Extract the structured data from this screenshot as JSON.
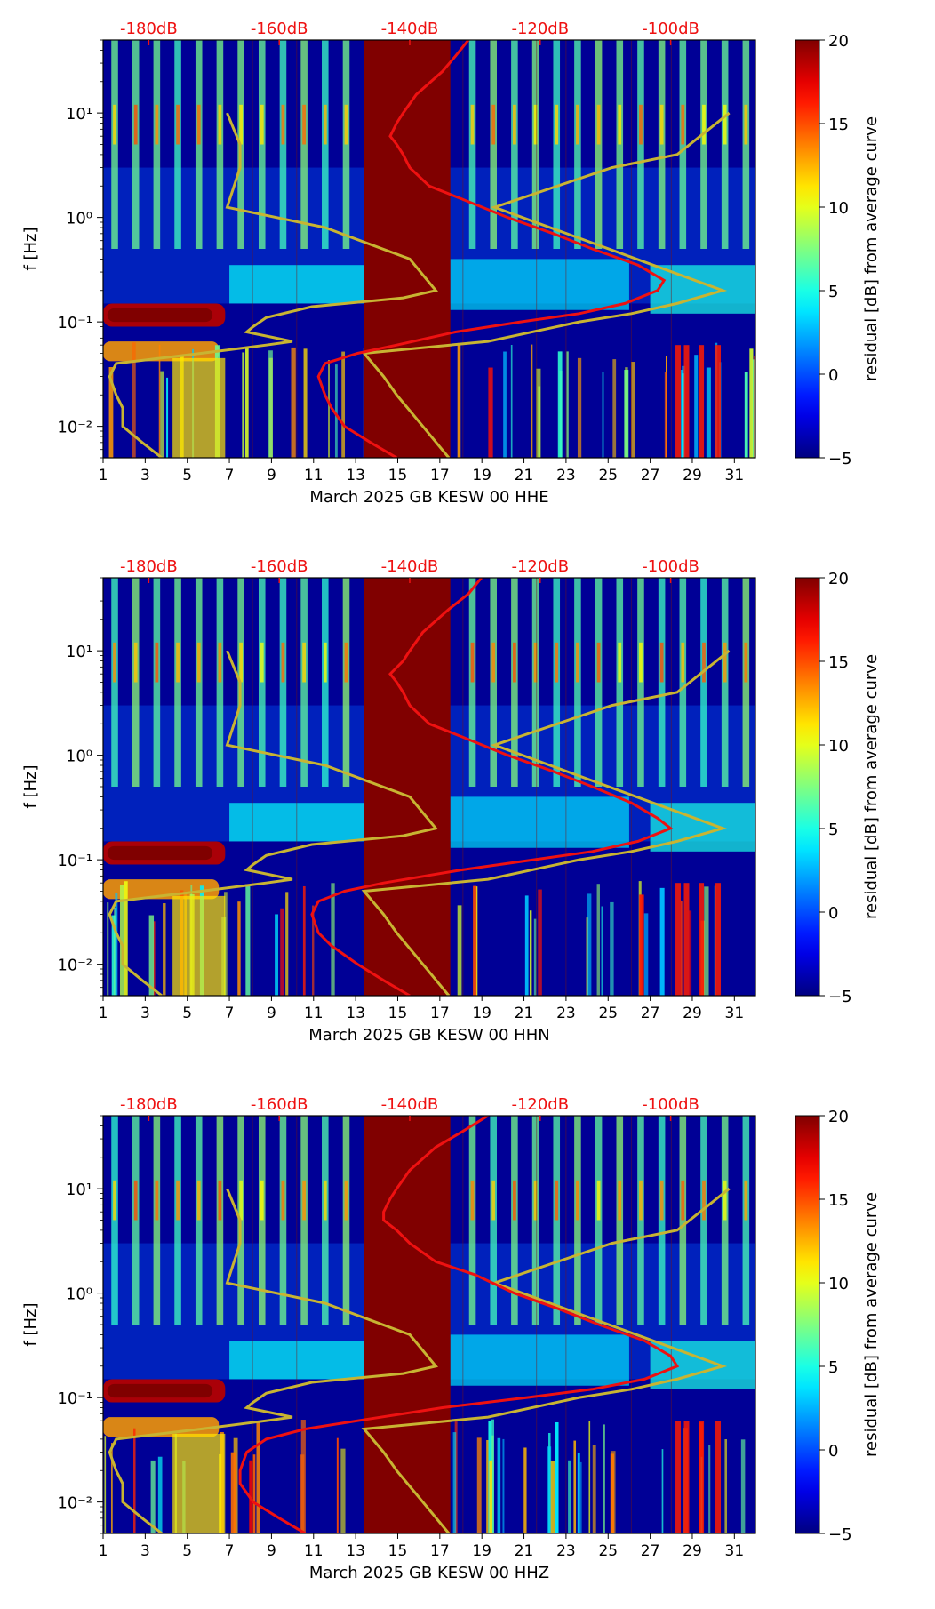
{
  "chart_data": [
    {
      "type": "heatmap",
      "xlabel": "March 2025 GB KESW 00 HHE",
      "ylabel": "f [Hz]",
      "x_ticks": [
        "1",
        "3",
        "5",
        "7",
        "9",
        "11",
        "13",
        "15",
        "17",
        "19",
        "21",
        "23",
        "25",
        "27",
        "29",
        "31"
      ],
      "xlim": [
        1,
        32
      ],
      "ylim": [
        0.005,
        50
      ],
      "y_scale": "log",
      "y_ticks": [
        {
          "value": 0.01,
          "label": "10⁻²"
        },
        {
          "value": 0.1,
          "label": "10⁻¹"
        },
        {
          "value": 1,
          "label": "10⁰"
        },
        {
          "value": 10,
          "label": "10¹"
        }
      ],
      "top_axis_labels": [
        "-180dB",
        "-160dB",
        "-140dB",
        "-120dB",
        "-100dB"
      ],
      "top_axis_range_db": [
        -187,
        -87
      ],
      "colorbar": {
        "label": "residual [dB] from average curve",
        "range": [
          -5,
          20
        ],
        "ticks": [
          "20",
          "15",
          "10",
          "5",
          "0",
          "−5"
        ],
        "colormap": "jet"
      },
      "data_gap_days": [
        13.4,
        17.5
      ],
      "average_psd_curve_db": {
        "color": "#ee1111",
        "freq_hz": [
          50,
          35,
          25,
          15,
          10,
          8,
          6,
          5,
          4,
          3,
          2,
          1.5,
          1.0,
          0.7,
          0.5,
          0.35,
          0.25,
          0.2,
          0.15,
          0.12,
          0.1,
          0.08,
          0.06,
          0.05,
          0.04,
          0.03,
          0.02,
          0.015,
          0.01,
          0.007,
          0.005
        ],
        "db": [
          -131,
          -133,
          -135,
          -139,
          -141,
          -142,
          -143,
          -142,
          -141,
          -140,
          -137,
          -132,
          -125,
          -118,
          -112,
          -105,
          -101,
          -102,
          -107,
          -114,
          -123,
          -133,
          -142,
          -148,
          -153,
          -154,
          -153,
          -152,
          -150,
          -146,
          -142
        ]
      },
      "nlnm_curve_db": {
        "color": "#c8b432",
        "freq_hz": [
          10,
          5,
          3,
          1.25,
          0.8,
          0.4,
          0.2,
          0.17,
          0.14,
          0.11,
          0.09,
          0.08,
          0.065,
          0.06,
          0.05,
          0.04,
          0.03,
          0.02,
          0.015,
          0.01,
          0.007,
          0.005
        ],
        "db": [
          -168,
          -166,
          -166,
          -168,
          -153,
          -140,
          -136,
          -141,
          -155,
          -162,
          -164,
          -165,
          -158,
          -162,
          -172,
          -185,
          -186,
          -185,
          -184,
          -184,
          -181,
          -178
        ]
      },
      "nhnm_curve_db": {
        "color": "#c8b432",
        "freq_hz": [
          10,
          4,
          3,
          1.25,
          0.2,
          0.15,
          0.12,
          0.1,
          0.065,
          0.05,
          0.03,
          0.02,
          0.01,
          0.005
        ],
        "db": [
          -91,
          -99,
          -109,
          -127,
          -92,
          -99,
          -106,
          -114,
          -128,
          -147,
          -144,
          -142,
          -138,
          -134
        ]
      }
    },
    {
      "type": "heatmap",
      "xlabel": "March 2025 GB KESW 00 HHN",
      "ylabel": "f [Hz]",
      "x_ticks": [
        "1",
        "3",
        "5",
        "7",
        "9",
        "11",
        "13",
        "15",
        "17",
        "19",
        "21",
        "23",
        "25",
        "27",
        "29",
        "31"
      ],
      "xlim": [
        1,
        32
      ],
      "ylim": [
        0.005,
        50
      ],
      "y_scale": "log",
      "y_ticks": [
        {
          "value": 0.01,
          "label": "10⁻²"
        },
        {
          "value": 0.1,
          "label": "10⁻¹"
        },
        {
          "value": 1,
          "label": "10⁰"
        },
        {
          "value": 10,
          "label": "10¹"
        }
      ],
      "top_axis_labels": [
        "-180dB",
        "-160dB",
        "-140dB",
        "-120dB",
        "-100dB"
      ],
      "top_axis_range_db": [
        -187,
        -87
      ],
      "colorbar": {
        "label": "residual [dB] from average curve",
        "range": [
          -5,
          20
        ],
        "ticks": [
          "20",
          "15",
          "10",
          "5",
          "0",
          "−5"
        ],
        "colormap": "jet"
      },
      "data_gap_days": [
        13.4,
        17.5
      ],
      "average_psd_curve_db": {
        "color": "#ee1111",
        "freq_hz": [
          50,
          35,
          25,
          15,
          10,
          8,
          6,
          5,
          4,
          3,
          2,
          1.5,
          1.0,
          0.7,
          0.5,
          0.35,
          0.25,
          0.2,
          0.15,
          0.12,
          0.1,
          0.08,
          0.06,
          0.05,
          0.04,
          0.03,
          0.02,
          0.015,
          0.01,
          0.007,
          0.005
        ],
        "db": [
          -129,
          -131,
          -134,
          -138,
          -140,
          -141,
          -143,
          -142,
          -141,
          -140,
          -137,
          -132,
          -125,
          -118,
          -112,
          -106,
          -102,
          -100,
          -105,
          -112,
          -121,
          -132,
          -144,
          -150,
          -154,
          -155,
          -154,
          -152,
          -148,
          -144,
          -140
        ]
      },
      "nlnm_curve_db": {
        "color": "#c8b432",
        "freq_hz": [
          10,
          5,
          3,
          1.25,
          0.8,
          0.4,
          0.2,
          0.17,
          0.14,
          0.11,
          0.09,
          0.08,
          0.065,
          0.06,
          0.05,
          0.04,
          0.03,
          0.02,
          0.015,
          0.01,
          0.007,
          0.005
        ],
        "db": [
          -168,
          -166,
          -166,
          -168,
          -153,
          -140,
          -136,
          -141,
          -155,
          -162,
          -164,
          -165,
          -158,
          -162,
          -172,
          -185,
          -186,
          -185,
          -184,
          -184,
          -181,
          -178
        ]
      },
      "nhnm_curve_db": {
        "color": "#c8b432",
        "freq_hz": [
          10,
          4,
          3,
          1.25,
          0.2,
          0.15,
          0.12,
          0.1,
          0.065,
          0.05,
          0.03,
          0.02,
          0.01,
          0.005
        ],
        "db": [
          -91,
          -99,
          -109,
          -127,
          -92,
          -99,
          -106,
          -114,
          -128,
          -147,
          -144,
          -142,
          -138,
          -134
        ]
      }
    },
    {
      "type": "heatmap",
      "xlabel": "March 2025 GB KESW 00 HHZ",
      "ylabel": "f [Hz]",
      "x_ticks": [
        "1",
        "3",
        "5",
        "7",
        "9",
        "11",
        "13",
        "15",
        "17",
        "19",
        "21",
        "23",
        "25",
        "27",
        "29",
        "31"
      ],
      "xlim": [
        1,
        32
      ],
      "ylim": [
        0.005,
        50
      ],
      "y_scale": "log",
      "y_ticks": [
        {
          "value": 0.01,
          "label": "10⁻²"
        },
        {
          "value": 0.1,
          "label": "10⁻¹"
        },
        {
          "value": 1,
          "label": "10⁰"
        },
        {
          "value": 10,
          "label": "10¹"
        }
      ],
      "top_axis_labels": [
        "-180dB",
        "-160dB",
        "-140dB",
        "-120dB",
        "-100dB"
      ],
      "top_axis_range_db": [
        -187,
        -87
      ],
      "colorbar": {
        "label": "residual [dB] from average curve",
        "range": [
          -5,
          20
        ],
        "ticks": [
          "20",
          "15",
          "10",
          "5",
          "0",
          "−5"
        ],
        "colormap": "jet"
      },
      "data_gap_days": [
        13.4,
        17.5
      ],
      "average_psd_curve_db": {
        "color": "#ee1111",
        "freq_hz": [
          50,
          35,
          25,
          15,
          10,
          8,
          6,
          5,
          4,
          3,
          2,
          1.5,
          1.0,
          0.7,
          0.5,
          0.35,
          0.25,
          0.2,
          0.15,
          0.12,
          0.1,
          0.08,
          0.06,
          0.05,
          0.04,
          0.03,
          0.02,
          0.015,
          0.01,
          0.007,
          0.005
        ],
        "db": [
          -128,
          -132,
          -136,
          -140,
          -142,
          -143,
          -144,
          -144,
          -142,
          -140,
          -136,
          -130,
          -124,
          -117,
          -111,
          -104,
          -100,
          -99,
          -104,
          -112,
          -122,
          -135,
          -148,
          -156,
          -162,
          -165,
          -166,
          -166,
          -164,
          -160,
          -156
        ]
      },
      "nlnm_curve_db": {
        "color": "#c8b432",
        "freq_hz": [
          10,
          5,
          3,
          1.25,
          0.8,
          0.4,
          0.2,
          0.17,
          0.14,
          0.11,
          0.09,
          0.08,
          0.065,
          0.06,
          0.05,
          0.04,
          0.03,
          0.02,
          0.015,
          0.01,
          0.007,
          0.005
        ],
        "db": [
          -168,
          -166,
          -166,
          -168,
          -153,
          -140,
          -136,
          -141,
          -155,
          -162,
          -164,
          -165,
          -158,
          -162,
          -172,
          -185,
          -186,
          -185,
          -184,
          -184,
          -181,
          -178
        ]
      },
      "nhnm_curve_db": {
        "color": "#c8b432",
        "freq_hz": [
          10,
          4,
          3,
          1.25,
          0.2,
          0.15,
          0.12,
          0.1,
          0.065,
          0.05,
          0.03,
          0.02,
          0.01,
          0.005
        ],
        "db": [
          -91,
          -99,
          -109,
          -127,
          -92,
          -99,
          -106,
          -114,
          -128,
          -147,
          -144,
          -142,
          -138,
          -134
        ]
      }
    }
  ]
}
